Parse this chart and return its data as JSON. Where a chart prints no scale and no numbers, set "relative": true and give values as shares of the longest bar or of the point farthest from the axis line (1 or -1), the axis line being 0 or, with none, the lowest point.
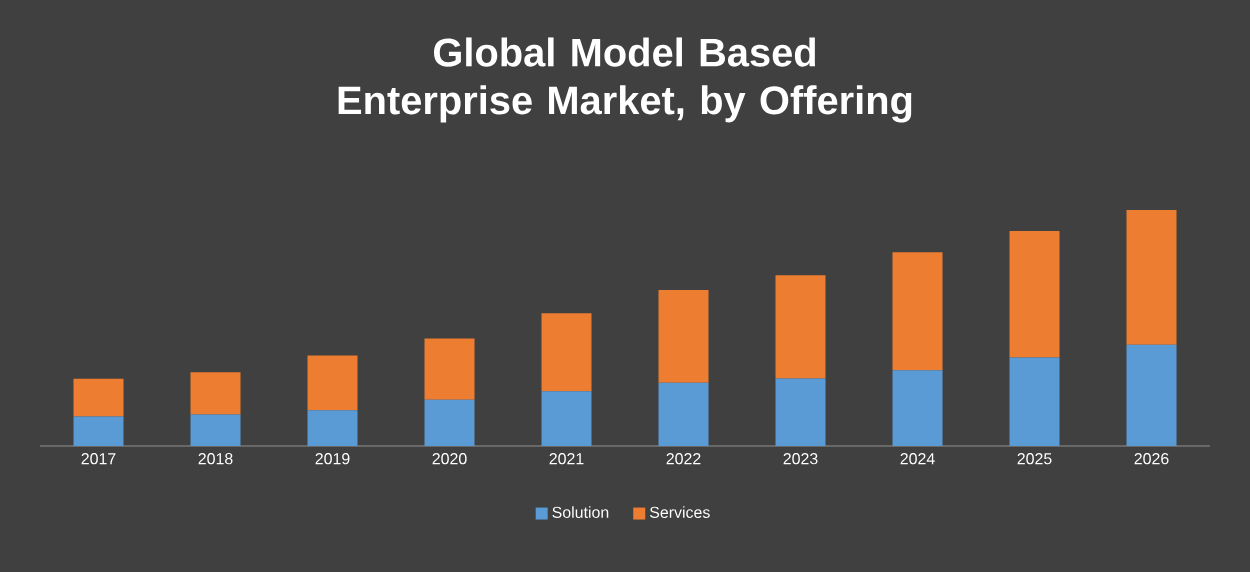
{
  "chart_data": {
    "type": "bar",
    "title": "Global Model Based Enterprise Market, by Offering",
    "stacked": true,
    "relative": true,
    "legend": "bottom",
    "categories": [
      "2017",
      "2018",
      "2019",
      "2020",
      "2021",
      "2022",
      "2023",
      "2024",
      "2025",
      "2026"
    ],
    "series": [
      {
        "name": "Solution",
        "color": "#5b9bd5",
        "values": [
          0.125,
          0.134,
          0.152,
          0.196,
          0.232,
          0.268,
          0.286,
          0.321,
          0.375,
          0.429
        ]
      },
      {
        "name": "Services",
        "color": "#ed7d31",
        "values": [
          0.16,
          0.179,
          0.232,
          0.259,
          0.33,
          0.393,
          0.438,
          0.5,
          0.536,
          0.571
        ]
      }
    ]
  }
}
